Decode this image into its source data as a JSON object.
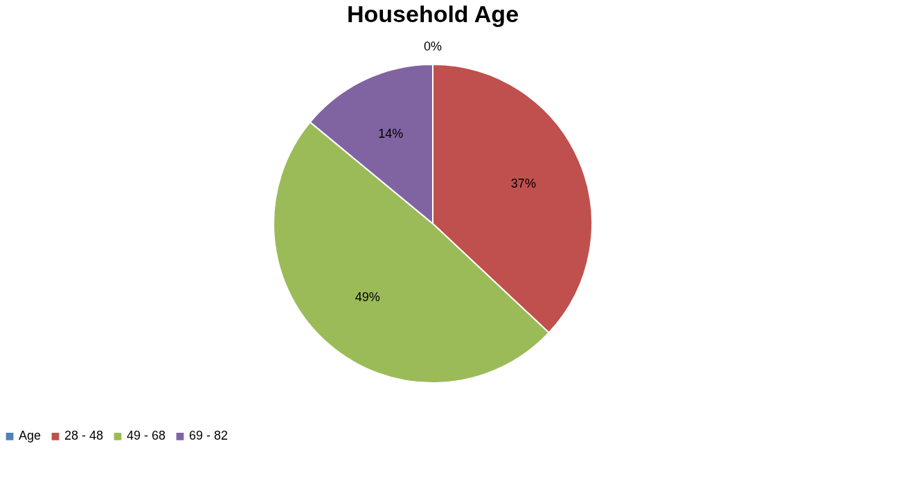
{
  "chart_data": {
    "type": "pie",
    "title": "Household Age",
    "categories": [
      "Age",
      "28 - 48",
      "49 - 68",
      "69 - 82"
    ],
    "values": [
      0,
      37,
      49,
      14
    ],
    "colors": [
      "#4f81bd",
      "#c0504d",
      "#9bbb59",
      "#8064a2"
    ],
    "value_labels": [
      "0%",
      "37%",
      "49%",
      "14%"
    ],
    "legend": "bottom"
  }
}
